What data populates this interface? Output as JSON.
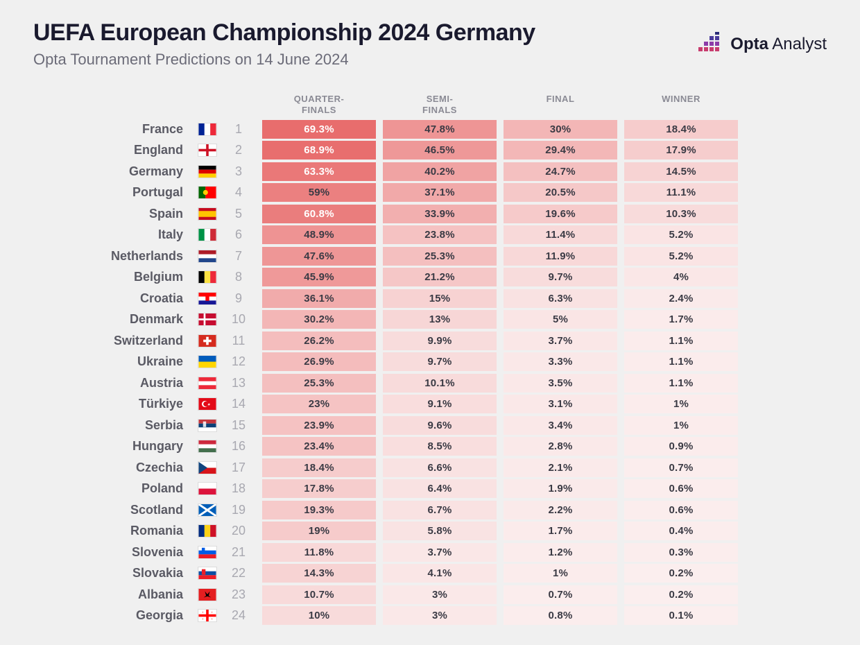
{
  "title": "UEFA European Championship 2024 Germany",
  "subtitle": "Opta Tournament Predictions on 14 June 2024",
  "logo": {
    "brand_bold": "Opta",
    "brand_light": " Analyst"
  },
  "columns": [
    {
      "label_top": "QUARTER-",
      "label_bot": "FINALS"
    },
    {
      "label_top": "SEMI-",
      "label_bot": "FINALS"
    },
    {
      "label_top": "",
      "label_bot": "FINAL"
    },
    {
      "label_top": "",
      "label_bot": "WINNER"
    }
  ],
  "heat_color": {
    "r": 232,
    "g": 108,
    "b": 108
  },
  "base_color": "#fbeeee",
  "max_value": 70,
  "text_dark": "#3a3a44",
  "text_light": "#ffffff",
  "light_text_threshold": 60,
  "rows": [
    {
      "country": "France",
      "rank": 1,
      "flag": "fr",
      "values": [
        "69.3%",
        "47.8%",
        "30%",
        "18.4%"
      ],
      "nums": [
        69.3,
        47.8,
        30,
        18.4
      ]
    },
    {
      "country": "England",
      "rank": 2,
      "flag": "en",
      "values": [
        "68.9%",
        "46.5%",
        "29.4%",
        "17.9%"
      ],
      "nums": [
        68.9,
        46.5,
        29.4,
        17.9
      ]
    },
    {
      "country": "Germany",
      "rank": 3,
      "flag": "de",
      "values": [
        "63.3%",
        "40.2%",
        "24.7%",
        "14.5%"
      ],
      "nums": [
        63.3,
        40.2,
        24.7,
        14.5
      ]
    },
    {
      "country": "Portugal",
      "rank": 4,
      "flag": "pt",
      "values": [
        "59%",
        "37.1%",
        "20.5%",
        "11.1%"
      ],
      "nums": [
        59,
        37.1,
        20.5,
        11.1
      ]
    },
    {
      "country": "Spain",
      "rank": 5,
      "flag": "es",
      "values": [
        "60.8%",
        "33.9%",
        "19.6%",
        "10.3%"
      ],
      "nums": [
        60.8,
        33.9,
        19.6,
        10.3
      ]
    },
    {
      "country": "Italy",
      "rank": 6,
      "flag": "it",
      "values": [
        "48.9%",
        "23.8%",
        "11.4%",
        "5.2%"
      ],
      "nums": [
        48.9,
        23.8,
        11.4,
        5.2
      ]
    },
    {
      "country": "Netherlands",
      "rank": 7,
      "flag": "nl",
      "values": [
        "47.6%",
        "25.3%",
        "11.9%",
        "5.2%"
      ],
      "nums": [
        47.6,
        25.3,
        11.9,
        5.2
      ]
    },
    {
      "country": "Belgium",
      "rank": 8,
      "flag": "be",
      "values": [
        "45.9%",
        "21.2%",
        "9.7%",
        "4%"
      ],
      "nums": [
        45.9,
        21.2,
        9.7,
        4
      ]
    },
    {
      "country": "Croatia",
      "rank": 9,
      "flag": "hr",
      "values": [
        "36.1%",
        "15%",
        "6.3%",
        "2.4%"
      ],
      "nums": [
        36.1,
        15,
        6.3,
        2.4
      ]
    },
    {
      "country": "Denmark",
      "rank": 10,
      "flag": "dk",
      "values": [
        "30.2%",
        "13%",
        "5%",
        "1.7%"
      ],
      "nums": [
        30.2,
        13,
        5,
        1.7
      ]
    },
    {
      "country": "Switzerland",
      "rank": 11,
      "flag": "ch",
      "values": [
        "26.2%",
        "9.9%",
        "3.7%",
        "1.1%"
      ],
      "nums": [
        26.2,
        9.9,
        3.7,
        1.1
      ]
    },
    {
      "country": "Ukraine",
      "rank": 12,
      "flag": "ua",
      "values": [
        "26.9%",
        "9.7%",
        "3.3%",
        "1.1%"
      ],
      "nums": [
        26.9,
        9.7,
        3.3,
        1.1
      ]
    },
    {
      "country": "Austria",
      "rank": 13,
      "flag": "at",
      "values": [
        "25.3%",
        "10.1%",
        "3.5%",
        "1.1%"
      ],
      "nums": [
        25.3,
        10.1,
        3.5,
        1.1
      ]
    },
    {
      "country": "Türkiye",
      "rank": 14,
      "flag": "tr",
      "values": [
        "23%",
        "9.1%",
        "3.1%",
        "1%"
      ],
      "nums": [
        23,
        9.1,
        3.1,
        1
      ]
    },
    {
      "country": "Serbia",
      "rank": 15,
      "flag": "rs",
      "values": [
        "23.9%",
        "9.6%",
        "3.4%",
        "1%"
      ],
      "nums": [
        23.9,
        9.6,
        3.4,
        1
      ]
    },
    {
      "country": "Hungary",
      "rank": 16,
      "flag": "hu",
      "values": [
        "23.4%",
        "8.5%",
        "2.8%",
        "0.9%"
      ],
      "nums": [
        23.4,
        8.5,
        2.8,
        0.9
      ]
    },
    {
      "country": "Czechia",
      "rank": 17,
      "flag": "cz",
      "values": [
        "18.4%",
        "6.6%",
        "2.1%",
        "0.7%"
      ],
      "nums": [
        18.4,
        6.6,
        2.1,
        0.7
      ]
    },
    {
      "country": "Poland",
      "rank": 18,
      "flag": "pl",
      "values": [
        "17.8%",
        "6.4%",
        "1.9%",
        "0.6%"
      ],
      "nums": [
        17.8,
        6.4,
        1.9,
        0.6
      ]
    },
    {
      "country": "Scotland",
      "rank": 19,
      "flag": "sc",
      "values": [
        "19.3%",
        "6.7%",
        "2.2%",
        "0.6%"
      ],
      "nums": [
        19.3,
        6.7,
        2.2,
        0.6
      ]
    },
    {
      "country": "Romania",
      "rank": 20,
      "flag": "ro",
      "values": [
        "19%",
        "5.8%",
        "1.7%",
        "0.4%"
      ],
      "nums": [
        19,
        5.8,
        1.7,
        0.4
      ]
    },
    {
      "country": "Slovenia",
      "rank": 21,
      "flag": "si",
      "values": [
        "11.8%",
        "3.7%",
        "1.2%",
        "0.3%"
      ],
      "nums": [
        11.8,
        3.7,
        1.2,
        0.3
      ]
    },
    {
      "country": "Slovakia",
      "rank": 22,
      "flag": "sk",
      "values": [
        "14.3%",
        "4.1%",
        "1%",
        "0.2%"
      ],
      "nums": [
        14.3,
        4.1,
        1,
        0.2
      ]
    },
    {
      "country": "Albania",
      "rank": 23,
      "flag": "al",
      "values": [
        "10.7%",
        "3%",
        "0.7%",
        "0.2%"
      ],
      "nums": [
        10.7,
        3,
        0.7,
        0.2
      ]
    },
    {
      "country": "Georgia",
      "rank": 24,
      "flag": "ge",
      "values": [
        "10%",
        "3%",
        "0.8%",
        "0.1%"
      ],
      "nums": [
        10,
        3,
        0.8,
        0.1
      ]
    }
  ]
}
